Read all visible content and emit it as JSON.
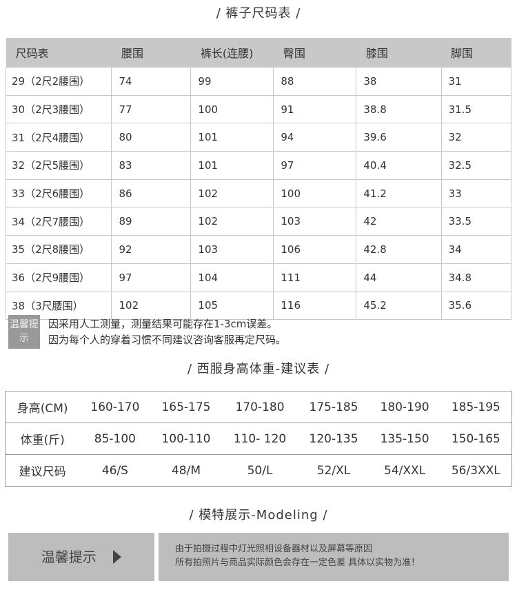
{
  "pants": {
    "title": "/  裤子尺码表  /",
    "headers": [
      "尺码表",
      "腰围",
      "裤长(连腰)",
      "臀围",
      "膝围",
      "脚围"
    ],
    "rows": [
      [
        "29（2尺2腰围）",
        "74",
        "99",
        "88",
        "38",
        "31"
      ],
      [
        "30（2尺3腰围）",
        "77",
        "100",
        "91",
        "38.8",
        "31.5"
      ],
      [
        "31（2尺4腰围）",
        "80",
        "101",
        "94",
        "39.6",
        "32"
      ],
      [
        "32（2尺5腰围）",
        "83",
        "101",
        "97",
        "40.4",
        "32.5"
      ],
      [
        "33（2尺6腰围）",
        "86",
        "102",
        "100",
        "41.2",
        "33"
      ],
      [
        "34（2尺7腰围）",
        "89",
        "102",
        "103",
        "42",
        "33.5"
      ],
      [
        "35（2尺8腰围）",
        "92",
        "103",
        "106",
        "42.8",
        "34"
      ],
      [
        "36（2尺9腰围）",
        "97",
        "104",
        "111",
        "44",
        "34.8"
      ],
      [
        "38（3尺腰围）",
        "102",
        "105",
        "116",
        "45.2",
        "35.6"
      ]
    ]
  },
  "notice": {
    "tag": "温馨提示",
    "line1": "因采用人工测量，测量结果可能存在1-3cm误差。",
    "line2": "因为每个人的穿着习惯不同建议咨询客服再定尺码。"
  },
  "suit": {
    "title": "/  西服身高体重-建议表 /",
    "rows": [
      [
        "身高(CM)",
        "160-170",
        "165-175",
        "170-180",
        "175-185",
        "180-190",
        "185-195"
      ],
      [
        "体重(斤)",
        "85-100",
        "100-110",
        "110- 120",
        "120-135",
        "135-150",
        "150-165"
      ],
      [
        "建议尺码",
        "46/S",
        "48/M",
        "50/L",
        "52/XL",
        "54/XXL",
        "56/3XXL"
      ]
    ]
  },
  "modeling": {
    "title": "/  模特展示-Modeling  /",
    "tip_label": "温馨提示",
    "tip_line1": "由于拍摄过程中灯光照相设备器材以及屏幕等原因",
    "tip_line2": "所有拍照片与商品实际颜色会存在一定色差 具体以实物为准！"
  }
}
